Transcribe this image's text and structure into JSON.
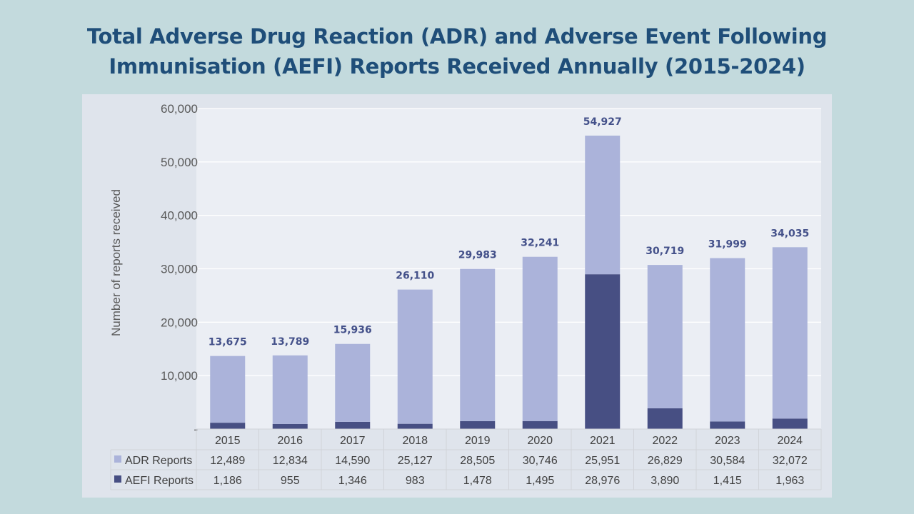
{
  "title_lines": [
    "Total Adverse Drug Reaction (ADR) and Adverse Event Following",
    "Immunisation (AEFI) Reports Received Annually (2015-2024)"
  ],
  "colors": {
    "adr": "#abb3da",
    "aefi": "#474f83",
    "label": "#44518a",
    "title": "#1f4e79"
  },
  "chart_data": {
    "type": "bar",
    "stacked": true,
    "title": "Total Adverse Drug Reaction (ADR) and Adverse Event Following Immunisation (AEFI) Reports Received Annually (2015-2024)",
    "xlabel": "",
    "ylabel": "Number of reports received",
    "ylim": [
      0,
      60000
    ],
    "yticks": [
      0,
      10000,
      20000,
      30000,
      40000,
      50000,
      60000
    ],
    "ytick_labels": [
      "-",
      "10,000",
      "20,000",
      "30,000",
      "40,000",
      "50,000",
      "60,000"
    ],
    "grid": true,
    "legend": "data-table",
    "categories": [
      "2015",
      "2016",
      "2017",
      "2018",
      "2019",
      "2020",
      "2021",
      "2022",
      "2023",
      "2024"
    ],
    "series": [
      {
        "name": "AEFI Reports",
        "values": [
          1186,
          955,
          1346,
          983,
          1478,
          1495,
          28976,
          3890,
          1415,
          1963
        ],
        "labels": [
          "1,186",
          "955",
          "1,346",
          "983",
          "1,478",
          "1,495",
          "28,976",
          "3,890",
          "1,415",
          "1,963"
        ]
      },
      {
        "name": "ADR Reports",
        "values": [
          12489,
          12834,
          14590,
          25127,
          28505,
          30746,
          25951,
          26829,
          30584,
          32072
        ],
        "labels": [
          "12,489",
          "12,834",
          "14,590",
          "25,127",
          "28,505",
          "30,746",
          "25,951",
          "26,829",
          "30,584",
          "32,072"
        ]
      }
    ],
    "totals": [
      13675,
      13789,
      15936,
      26110,
      29983,
      32241,
      54927,
      30719,
      31999,
      34035
    ],
    "total_labels": [
      "13,675",
      "13,789",
      "15,936",
      "26,110",
      "29,983",
      "32,241",
      "54,927",
      "30,719",
      "31,999",
      "34,035"
    ]
  }
}
